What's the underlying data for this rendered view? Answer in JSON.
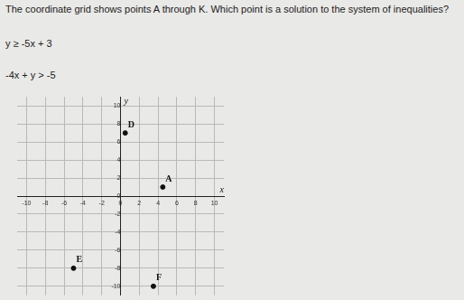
{
  "question": "The coordinate grid shows points A through K. Which point is a solution to the system of inequalities?",
  "inequalities": [
    "y ≥ -5x + 3",
    "-4x + y > -5"
  ],
  "chart_data": {
    "type": "scatter",
    "x_label": "x",
    "y_label": "y",
    "color": "#111111",
    "grid": true,
    "points": [
      {
        "label": "A",
        "x": 4.5,
        "y": 1
      },
      {
        "label": "D",
        "x": 0.5,
        "y": 7
      },
      {
        "label": "E",
        "x": -5,
        "y": -8
      },
      {
        "label": "F",
        "x": 3.5,
        "y": -10
      }
    ],
    "xlim": [
      -11,
      11
    ],
    "ylim": [
      -11,
      11
    ],
    "xticks": [
      -10,
      -8,
      -6,
      -4,
      -2,
      0,
      2,
      4,
      6,
      8,
      10
    ],
    "yticks": [
      -10,
      -8,
      -6,
      -4,
      -2,
      0,
      2,
      4,
      6,
      8,
      10
    ]
  }
}
